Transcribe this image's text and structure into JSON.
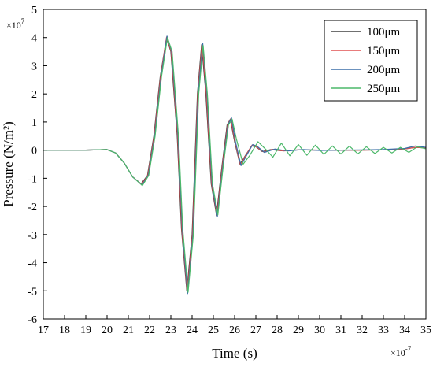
{
  "chart_data": {
    "type": "line",
    "title": "",
    "xlabel": "Time (s)",
    "ylabel": "Pressure (N/m²)",
    "x_multiplier_label": {
      "base": "×10",
      "exp": "-7"
    },
    "y_multiplier_label": {
      "base": "×10",
      "exp": "7"
    },
    "xlim": [
      17,
      35
    ],
    "ylim": [
      -6,
      5
    ],
    "x_ticks": [
      17,
      18,
      19,
      20,
      21,
      22,
      23,
      24,
      25,
      26,
      27,
      28,
      29,
      30,
      31,
      32,
      33,
      34,
      35
    ],
    "y_ticks": [
      -6,
      -5,
      -4,
      -3,
      -2,
      -1,
      0,
      1,
      2,
      3,
      4,
      5
    ],
    "grid": false,
    "legend": "top-right",
    "series": [
      {
        "name": "100μm",
        "color": "#404040",
        "points": [
          [
            17,
            0
          ],
          [
            19,
            0
          ],
          [
            20,
            0.02
          ],
          [
            20.4,
            -0.1
          ],
          [
            20.8,
            -0.45
          ],
          [
            21.2,
            -0.95
          ],
          [
            21.6,
            -1.2
          ],
          [
            21.9,
            -0.9
          ],
          [
            22.2,
            0.5
          ],
          [
            22.5,
            2.6
          ],
          [
            22.8,
            4.0
          ],
          [
            23.0,
            3.5
          ],
          [
            23.3,
            0.5
          ],
          [
            23.5,
            -2.8
          ],
          [
            23.75,
            -5.0
          ],
          [
            24.0,
            -3.0
          ],
          [
            24.25,
            2.0
          ],
          [
            24.45,
            3.75
          ],
          [
            24.65,
            2.0
          ],
          [
            24.9,
            -1.2
          ],
          [
            25.15,
            -2.3
          ],
          [
            25.4,
            -0.6
          ],
          [
            25.65,
            0.9
          ],
          [
            25.8,
            1.1
          ],
          [
            26.0,
            0.3
          ],
          [
            26.25,
            -0.5
          ],
          [
            26.5,
            -0.2
          ],
          [
            26.8,
            0.15
          ],
          [
            27.0,
            0.12
          ],
          [
            27.3,
            -0.05
          ],
          [
            27.7,
            0.02
          ],
          [
            28.2,
            -0.02
          ],
          [
            29,
            0.01
          ],
          [
            30,
            0
          ],
          [
            31,
            0
          ],
          [
            32,
            0
          ],
          [
            33,
            0.01
          ],
          [
            34,
            0.04
          ],
          [
            34.5,
            0.1
          ],
          [
            35,
            0.08
          ]
        ]
      },
      {
        "name": "150μm",
        "color": "#e05050",
        "points": [
          [
            17,
            0
          ],
          [
            19,
            0
          ],
          [
            20,
            0.02
          ],
          [
            20.4,
            -0.1
          ],
          [
            20.8,
            -0.45
          ],
          [
            21.2,
            -0.95
          ],
          [
            21.62,
            -1.22
          ],
          [
            21.92,
            -0.9
          ],
          [
            22.22,
            0.5
          ],
          [
            22.52,
            2.6
          ],
          [
            22.8,
            4.02
          ],
          [
            23.02,
            3.5
          ],
          [
            23.32,
            0.5
          ],
          [
            23.52,
            -2.8
          ],
          [
            23.77,
            -5.05
          ],
          [
            24.02,
            -3.0
          ],
          [
            24.27,
            2.0
          ],
          [
            24.47,
            3.78
          ],
          [
            24.67,
            2.0
          ],
          [
            24.92,
            -1.2
          ],
          [
            25.17,
            -2.32
          ],
          [
            25.42,
            -0.6
          ],
          [
            25.67,
            0.9
          ],
          [
            25.82,
            1.12
          ],
          [
            26.02,
            0.3
          ],
          [
            26.27,
            -0.52
          ],
          [
            26.52,
            -0.2
          ],
          [
            26.82,
            0.18
          ],
          [
            27.02,
            0.12
          ],
          [
            27.35,
            -0.06
          ],
          [
            27.8,
            0.03
          ],
          [
            28.3,
            -0.03
          ],
          [
            29,
            0.01
          ],
          [
            30,
            0
          ],
          [
            31,
            0
          ],
          [
            32,
            0
          ],
          [
            33,
            0.01
          ],
          [
            34,
            0.04
          ],
          [
            34.5,
            0.1
          ],
          [
            35,
            0.08
          ]
        ]
      },
      {
        "name": "200μm",
        "color": "#3b6fa8",
        "points": [
          [
            17,
            0
          ],
          [
            19,
            0
          ],
          [
            20,
            0.02
          ],
          [
            20.4,
            -0.1
          ],
          [
            20.8,
            -0.45
          ],
          [
            21.2,
            -0.95
          ],
          [
            21.64,
            -1.24
          ],
          [
            21.94,
            -0.9
          ],
          [
            22.24,
            0.5
          ],
          [
            22.54,
            2.6
          ],
          [
            22.82,
            4.05
          ],
          [
            23.04,
            3.5
          ],
          [
            23.34,
            0.5
          ],
          [
            23.54,
            -2.8
          ],
          [
            23.79,
            -5.1
          ],
          [
            24.04,
            -3.0
          ],
          [
            24.29,
            2.0
          ],
          [
            24.5,
            3.8
          ],
          [
            24.7,
            2.0
          ],
          [
            24.94,
            -1.2
          ],
          [
            25.19,
            -2.35
          ],
          [
            25.44,
            -0.6
          ],
          [
            25.69,
            0.9
          ],
          [
            25.85,
            1.15
          ],
          [
            26.04,
            0.3
          ],
          [
            26.3,
            -0.55
          ],
          [
            26.55,
            -0.2
          ],
          [
            26.85,
            0.2
          ],
          [
            27.05,
            0.14
          ],
          [
            27.4,
            -0.08
          ],
          [
            27.9,
            0.04
          ],
          [
            28.5,
            -0.03
          ],
          [
            29.2,
            0.02
          ],
          [
            30,
            -0.01
          ],
          [
            31,
            0
          ],
          [
            32,
            0.01
          ],
          [
            33,
            0.02
          ],
          [
            34,
            0.06
          ],
          [
            34.5,
            0.15
          ],
          [
            35,
            0.1
          ]
        ]
      },
      {
        "name": "250μm",
        "color": "#4cb86a",
        "points": [
          [
            17,
            0
          ],
          [
            19,
            0
          ],
          [
            20,
            0.02
          ],
          [
            20.4,
            -0.1
          ],
          [
            20.8,
            -0.45
          ],
          [
            21.2,
            -0.95
          ],
          [
            21.66,
            -1.26
          ],
          [
            21.96,
            -0.9
          ],
          [
            22.26,
            0.5
          ],
          [
            22.56,
            2.6
          ],
          [
            22.84,
            4.0
          ],
          [
            23.06,
            3.5
          ],
          [
            23.36,
            0.5
          ],
          [
            23.56,
            -2.8
          ],
          [
            23.81,
            -5.05
          ],
          [
            24.06,
            -3.0
          ],
          [
            24.31,
            2.0
          ],
          [
            24.52,
            3.72
          ],
          [
            24.72,
            2.0
          ],
          [
            24.96,
            -1.2
          ],
          [
            25.21,
            -2.3
          ],
          [
            25.46,
            -0.6
          ],
          [
            25.71,
            0.9
          ],
          [
            25.88,
            1.1
          ],
          [
            26.08,
            0.4
          ],
          [
            26.4,
            -0.5
          ],
          [
            26.7,
            -0.2
          ],
          [
            27.1,
            0.3
          ],
          [
            27.5,
            0.0
          ],
          [
            27.8,
            -0.25
          ],
          [
            28.2,
            0.25
          ],
          [
            28.6,
            -0.2
          ],
          [
            29.0,
            0.2
          ],
          [
            29.4,
            -0.18
          ],
          [
            29.8,
            0.18
          ],
          [
            30.2,
            -0.15
          ],
          [
            30.6,
            0.15
          ],
          [
            31.0,
            -0.14
          ],
          [
            31.4,
            0.14
          ],
          [
            31.8,
            -0.13
          ],
          [
            32.2,
            0.12
          ],
          [
            32.6,
            -0.12
          ],
          [
            33.0,
            0.1
          ],
          [
            33.4,
            -0.1
          ],
          [
            33.8,
            0.1
          ],
          [
            34.2,
            -0.08
          ],
          [
            34.6,
            0.12
          ],
          [
            35,
            0.05
          ]
        ]
      }
    ]
  }
}
